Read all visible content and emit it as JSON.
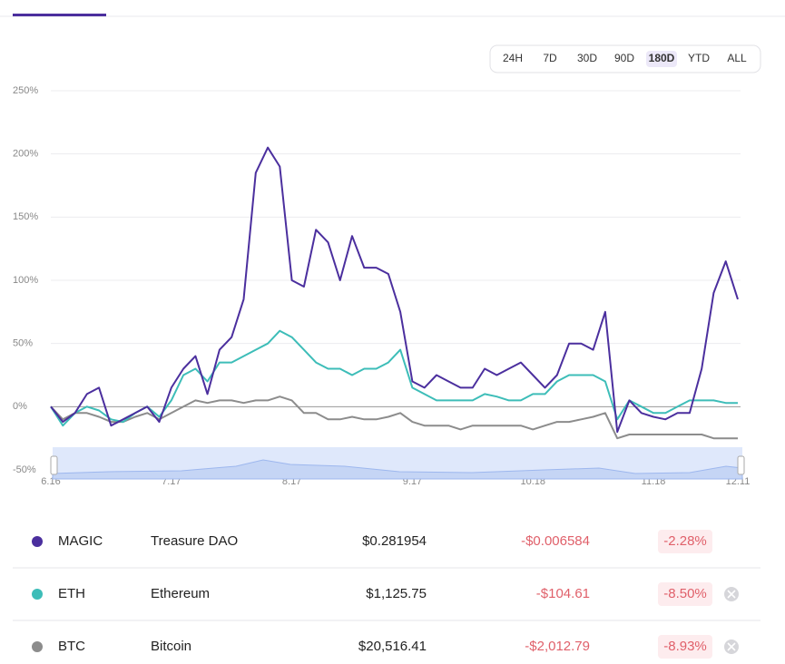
{
  "range_selector": {
    "options": [
      "24H",
      "7D",
      "30D",
      "90D",
      "180D",
      "YTD",
      "ALL"
    ],
    "active": "180D"
  },
  "chart_data": {
    "type": "line",
    "categories": [
      "6.16",
      null,
      null,
      null,
      null,
      null,
      null,
      null,
      null,
      null,
      "7.17",
      null,
      null,
      null,
      null,
      null,
      null,
      null,
      null,
      null,
      "8.17",
      null,
      null,
      null,
      null,
      null,
      null,
      null,
      null,
      null,
      "9.17",
      null,
      null,
      null,
      null,
      null,
      null,
      null,
      null,
      null,
      "10.18",
      null,
      null,
      null,
      null,
      null,
      null,
      null,
      null,
      null,
      "11.18",
      null,
      null,
      null,
      null,
      null,
      null,
      "12.11"
    ],
    "ylim": [
      -50,
      250
    ],
    "yticks": [
      {
        "value": -50,
        "label": "-50%"
      },
      {
        "value": 0,
        "label": "0%"
      },
      {
        "value": 50,
        "label": "50%"
      },
      {
        "value": 100,
        "label": "100%"
      },
      {
        "value": 150,
        "label": "150%"
      },
      {
        "value": 200,
        "label": "200%"
      },
      {
        "value": 250,
        "label": "250%"
      }
    ],
    "grid": true,
    "series": [
      {
        "name": "MAGIC",
        "color": "#4b2f9e",
        "values": [
          0,
          -12,
          -5,
          10,
          15,
          -15,
          -10,
          -5,
          0,
          -12,
          15,
          30,
          40,
          10,
          45,
          55,
          85,
          185,
          205,
          190,
          100,
          95,
          140,
          130,
          100,
          135,
          110,
          110,
          105,
          75,
          20,
          15,
          25,
          20,
          15,
          15,
          30,
          25,
          30,
          35,
          25,
          15,
          25,
          50,
          50,
          45,
          75,
          -20,
          5,
          -5,
          -8,
          -10,
          -5,
          -5,
          30,
          90,
          115,
          85
        ]
      },
      {
        "name": "ETH",
        "color": "#3dbdb8",
        "values": [
          0,
          -15,
          -5,
          0,
          -3,
          -10,
          -12,
          -5,
          0,
          -8,
          5,
          25,
          30,
          20,
          35,
          35,
          40,
          45,
          50,
          60,
          55,
          45,
          35,
          30,
          30,
          25,
          30,
          30,
          35,
          45,
          15,
          10,
          5,
          5,
          5,
          5,
          10,
          8,
          5,
          5,
          10,
          10,
          20,
          25,
          25,
          25,
          20,
          -10,
          5,
          0,
          -5,
          -5,
          0,
          5,
          5,
          5,
          3,
          3
        ]
      },
      {
        "name": "BTC",
        "color": "#8c8c8c",
        "values": [
          0,
          -10,
          -5,
          -5,
          -8,
          -12,
          -12,
          -8,
          -5,
          -10,
          -5,
          0,
          5,
          3,
          5,
          5,
          3,
          5,
          5,
          8,
          5,
          -5,
          -5,
          -10,
          -10,
          -8,
          -10,
          -10,
          -8,
          -5,
          -12,
          -15,
          -15,
          -15,
          -18,
          -15,
          -15,
          -15,
          -15,
          -15,
          -18,
          -15,
          -12,
          -12,
          -10,
          -8,
          -5,
          -25,
          -22,
          -22,
          -22,
          -22,
          -22,
          -22,
          -22,
          -25,
          -25,
          -25
        ]
      }
    ]
  },
  "table": {
    "rows": [
      [
        "Treasure DAO",
        "$0.281954",
        "-$0.006584",
        "-2.28%"
      ],
      [
        "Ethereum",
        "$1,125.75",
        "-$104.61",
        "-8.50%"
      ],
      [
        "Bitcoin",
        "$20,516.41",
        "-$2,012.79",
        "-8.93%"
      ]
    ]
  }
}
